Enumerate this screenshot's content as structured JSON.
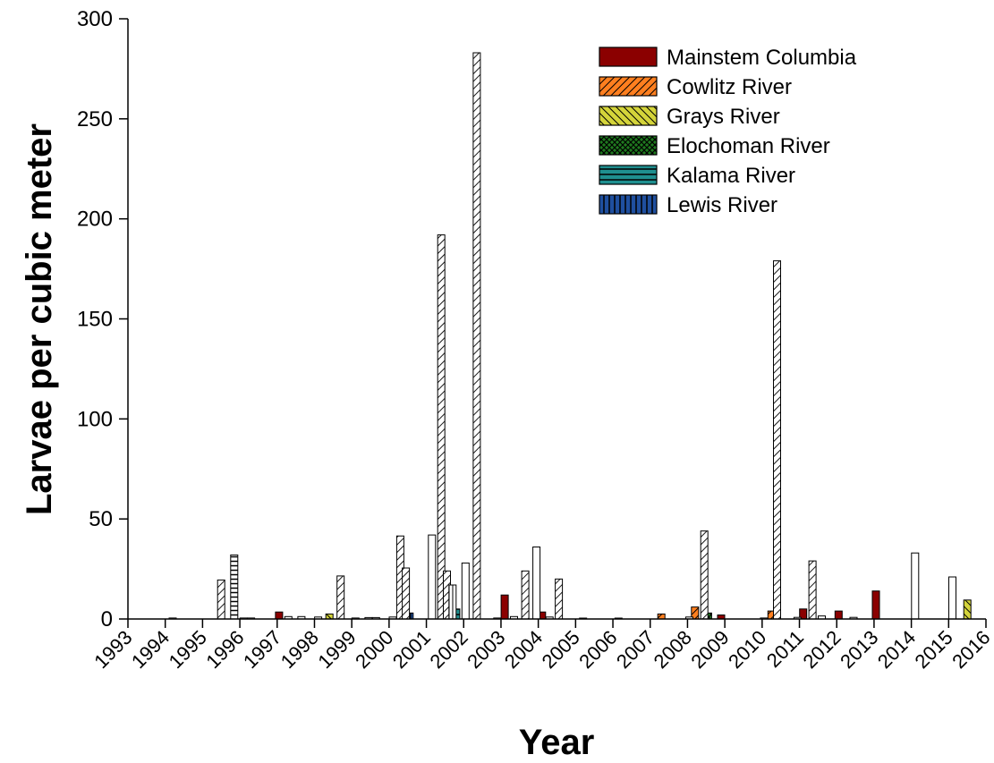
{
  "chart_data": {
    "type": "bar",
    "title": "",
    "xlabel": "Year",
    "ylabel": "Larvae per cubic meter",
    "ylim": [
      0,
      300
    ],
    "yticks": [
      "0",
      "50",
      "100",
      "150",
      "200",
      "250",
      "300"
    ],
    "xlim": [
      1993,
      2016
    ],
    "xticks": [
      "1993",
      "1994",
      "1995",
      "1996",
      "1997",
      "1998",
      "1999",
      "2000",
      "2001",
      "2002",
      "2003",
      "2004",
      "2005",
      "2006",
      "2007",
      "2008",
      "2009",
      "2010",
      "2011",
      "2012",
      "2013",
      "2014",
      "2015",
      "2016"
    ],
    "legend_position": "top-right",
    "series": [
      {
        "name": "Mainstem Columbia",
        "color": "#8b0000",
        "pattern": "solid",
        "points": [
          {
            "x": 1997.05,
            "y": 3.5
          },
          {
            "x": 2003.1,
            "y": 12
          },
          {
            "x": 2004.1,
            "y": 3.5
          },
          {
            "x": 2008.9,
            "y": 2
          },
          {
            "x": 2011.1,
            "y": 5
          },
          {
            "x": 2012.05,
            "y": 4
          },
          {
            "x": 2013.05,
            "y": 14
          }
        ]
      },
      {
        "name": "Cowlitz River",
        "color": "#ff7f1f",
        "pattern": "diag-orange",
        "points": [
          {
            "x": 2007.3,
            "y": 2.5
          },
          {
            "x": 2008.2,
            "y": 6
          },
          {
            "x": 2010.25,
            "y": 4
          }
        ]
      },
      {
        "name": "Grays River",
        "color": "#c8c82a",
        "pattern": "diag-yellow",
        "points": [
          {
            "x": 1998.4,
            "y": 2.5
          },
          {
            "x": 2015.5,
            "y": 9.5
          }
        ]
      },
      {
        "name": "Elochoman River",
        "color": "#1f7a1f",
        "pattern": "cross-green",
        "points": [
          {
            "x": 2008.55,
            "y": 3
          }
        ]
      },
      {
        "name": "Kalama River",
        "color": "#1f8f8f",
        "pattern": "hlines-teal",
        "points": [
          {
            "x": 2001.8,
            "y": 5
          }
        ]
      },
      {
        "name": "Lewis River",
        "color": "#1f4f9f",
        "pattern": "vlines-blue",
        "points": [
          {
            "x": 2000.55,
            "y": 3
          }
        ]
      },
      {
        "name": "",
        "color": "#ffffff",
        "pattern": "white-hatch",
        "points": [
          {
            "x": 1995.5,
            "y": 19.5
          },
          {
            "x": 1998.7,
            "y": 21.5
          },
          {
            "x": 2000.3,
            "y": 41.5
          },
          {
            "x": 2000.45,
            "y": 25.5
          },
          {
            "x": 2001.4,
            "y": 192
          },
          {
            "x": 2001.55,
            "y": 24
          },
          {
            "x": 2002.35,
            "y": 283
          },
          {
            "x": 2003.65,
            "y": 24
          },
          {
            "x": 2004.55,
            "y": 20
          },
          {
            "x": 2008.45,
            "y": 44
          },
          {
            "x": 2010.4,
            "y": 179
          },
          {
            "x": 2011.35,
            "y": 29
          }
        ]
      },
      {
        "name": "",
        "color": "#ffffff",
        "pattern": "white-hlines",
        "points": [
          {
            "x": 1995.85,
            "y": 32
          }
        ]
      },
      {
        "name": "",
        "color": "#ffffff",
        "pattern": "white-vlines",
        "points": [
          {
            "x": 2001.7,
            "y": 17
          }
        ]
      },
      {
        "name": "",
        "color": "#ffffff",
        "pattern": "white",
        "points": [
          {
            "x": 2001.15,
            "y": 42
          },
          {
            "x": 2002.05,
            "y": 28
          },
          {
            "x": 2003.95,
            "y": 36
          },
          {
            "x": 2014.1,
            "y": 33
          },
          {
            "x": 2015.1,
            "y": 21
          }
        ]
      },
      {
        "name": "",
        "color": "#ffffff",
        "pattern": "white",
        "points": [
          {
            "x": 1994.2,
            "y": 0.5
          },
          {
            "x": 1996.1,
            "y": 0.5
          },
          {
            "x": 1996.3,
            "y": 0.5
          },
          {
            "x": 1997.3,
            "y": 1.2
          },
          {
            "x": 1997.65,
            "y": 1.2
          },
          {
            "x": 1998.1,
            "y": 1
          },
          {
            "x": 1999.1,
            "y": 0.5
          },
          {
            "x": 1999.45,
            "y": 0.7
          },
          {
            "x": 1999.65,
            "y": 0.7
          },
          {
            "x": 2000.1,
            "y": 1
          },
          {
            "x": 2002.9,
            "y": 0.5
          },
          {
            "x": 2003.35,
            "y": 1.2
          },
          {
            "x": 2004.3,
            "y": 1
          },
          {
            "x": 2005.2,
            "y": 0.3
          },
          {
            "x": 2006.15,
            "y": 0.3
          },
          {
            "x": 2008.05,
            "y": 1
          },
          {
            "x": 2010.05,
            "y": 0.5
          },
          {
            "x": 2010.95,
            "y": 0.8
          },
          {
            "x": 2011.6,
            "y": 1.5
          },
          {
            "x": 2012.45,
            "y": 0.8
          }
        ]
      }
    ]
  }
}
